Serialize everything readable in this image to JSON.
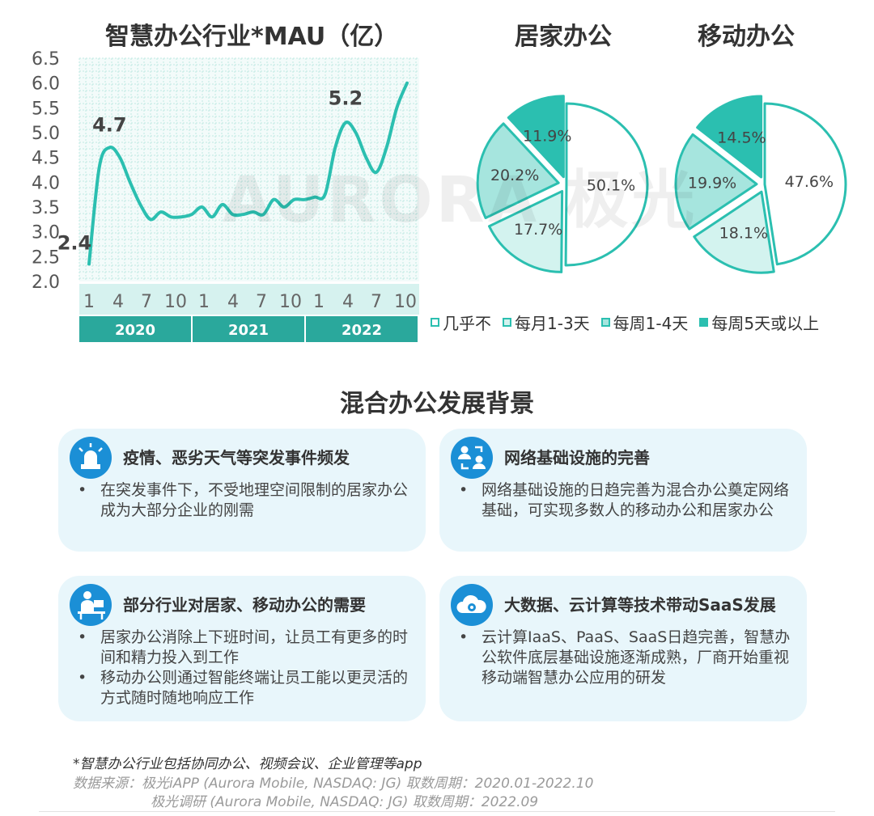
{
  "colors": {
    "teal": "#2bbfb0",
    "teal_mid": "#a6e5de",
    "teal_light": "#d3f3ef",
    "dark_band": "#2aa89c",
    "light_band": "#d6f2ef",
    "blue_icon": "#1b8fd6",
    "card_bg": "#e8f6fb"
  },
  "chart_data": [
    {
      "type": "line",
      "title": "智慧办公行业*MAU（亿）",
      "ylim": [
        2.0,
        6.5
      ],
      "yticks": [
        "6.5",
        "6.0",
        "5.5",
        "5.0",
        "4.5",
        "4.0",
        "3.5",
        "3.0",
        "2.5",
        "2.0"
      ],
      "xtick_labels": [
        "1",
        "4",
        "7",
        "10",
        "1",
        "4",
        "7",
        "10",
        "1",
        "4",
        "7",
        "10"
      ],
      "years": [
        "2020",
        "2021",
        "2022"
      ],
      "grid": true,
      "series": [
        {
          "values": [
            2.35,
            4.3,
            4.7,
            4.5,
            4.0,
            3.55,
            3.25,
            3.4,
            3.3,
            3.3,
            3.35,
            3.5,
            3.3,
            3.55,
            3.35,
            3.35,
            3.4,
            3.35,
            3.65,
            3.5,
            3.65,
            3.65,
            3.7,
            3.75,
            4.7,
            5.2,
            5.0,
            4.5,
            4.2,
            4.7,
            5.5,
            6.0
          ]
        }
      ],
      "annotations": [
        {
          "label": "2.4",
          "index": 0
        },
        {
          "label": "4.7",
          "index": 2
        },
        {
          "label": "5.2",
          "index": 25
        }
      ]
    },
    {
      "type": "pie",
      "title": "居家办公",
      "slices": [
        {
          "category": "几乎不",
          "value": 50.1,
          "label": "50.1%"
        },
        {
          "category": "每月1-3天",
          "value": 17.7,
          "label": "17.7%"
        },
        {
          "category": "每周1-4天",
          "value": 20.2,
          "label": "20.2%"
        },
        {
          "category": "每周5天或以上",
          "value": 11.9,
          "label": "11.9%"
        }
      ]
    },
    {
      "type": "pie",
      "title": "移动办公",
      "slices": [
        {
          "category": "几乎不",
          "value": 47.6,
          "label": "47.6%"
        },
        {
          "category": "每月1-3天",
          "value": 18.1,
          "label": "18.1%"
        },
        {
          "category": "每周1-4天",
          "value": 19.9,
          "label": "19.9%"
        },
        {
          "category": "每周5天或以上",
          "value": 14.5,
          "label": "14.5%"
        }
      ]
    }
  ],
  "legend": [
    "几乎不",
    "每月1-3天",
    "每周1-4天",
    "每周5天或以上"
  ],
  "section_title": "混合办公发展背景",
  "cards": [
    {
      "icon": "alarm-light-icon",
      "title": "疫情、恶劣天气等突发事件频发",
      "bullets": [
        "在突发事件下，不受地理空间限制的居家办公成为大部分企业的刚需"
      ]
    },
    {
      "icon": "network-users-icon",
      "title": "网络基础设施的完善",
      "bullets": [
        "网络基础设施的日趋完善为混合办公奠定网络基础，可实现多数人的移动办公和居家办公"
      ]
    },
    {
      "icon": "desk-worker-icon",
      "title": "部分行业对居家、移动办公的需要",
      "bullets": [
        "居家办公消除上下班时间，让员工有更多的时间和精力投入到工作",
        "移动办公则通过智能终端让员工能以更灵活的方式随时随地响应工作"
      ]
    },
    {
      "icon": "cloud-gear-icon",
      "title": "大数据、云计算等技术带动SaaS发展",
      "bullets": [
        "云计算IaaS、PaaS、SaaS日趋完善，智慧办公软件底层基础设施逐渐成熟，厂商开始重视移动端智慧办公应用的研发"
      ]
    }
  ],
  "footnote": "*智慧办公行业包括协同办公、视频会议、企业管理等app",
  "source_line1": "数据来源：极光iAPP (Aurora Mobile, NASDAQ: JG) 取数周期：2020.01-2022.10",
  "source_line2": "极光调研 (Aurora Mobile, NASDAQ: JG) 取数周期：2022.09",
  "watermark": "AURORA 极光"
}
